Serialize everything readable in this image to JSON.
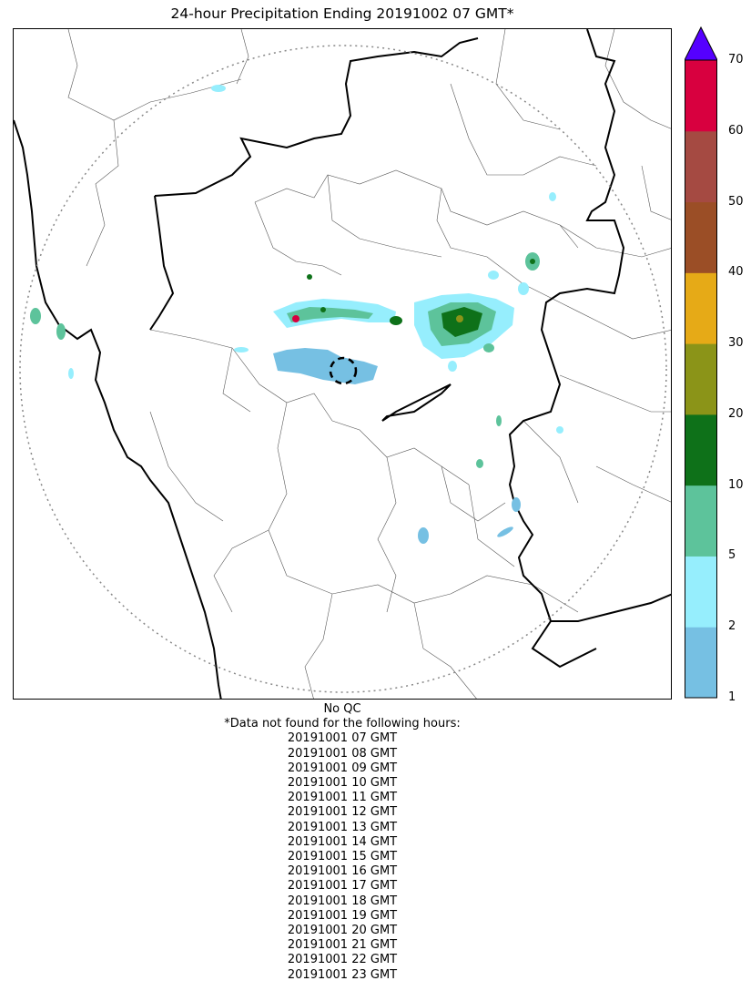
{
  "title": "24-hour Precipitation Ending 20191002 07 GMT*",
  "map": {
    "qc_status": "No QC",
    "missing_note": "*Data not found for the following hours:",
    "missing_hours": [
      "20191001 07 GMT",
      "20191001 08 GMT",
      "20191001 09 GMT",
      "20191001 10 GMT",
      "20191001 11 GMT",
      "20191001 12 GMT",
      "20191001 13 GMT",
      "20191001 14 GMT",
      "20191001 15 GMT",
      "20191001 16 GMT",
      "20191001 17 GMT",
      "20191001 18 GMT",
      "20191001 19 GMT",
      "20191001 20 GMT",
      "20191001 21 GMT",
      "20191001 22 GMT",
      "20191001 23 GMT"
    ]
  },
  "colorbar": {
    "ticks": [
      "1",
      "2",
      "5",
      "10",
      "20",
      "30",
      "40",
      "50",
      "60",
      "70"
    ],
    "bins": [
      {
        "from": 1,
        "to": 2,
        "color": "#76c0e3"
      },
      {
        "from": 2,
        "to": 5,
        "color": "#96eefd"
      },
      {
        "from": 5,
        "to": 10,
        "color": "#5dc39b"
      },
      {
        "from": 10,
        "to": 20,
        "color": "#0e7119"
      },
      {
        "from": 20,
        "to": 30,
        "color": "#8b9418"
      },
      {
        "from": 30,
        "to": 40,
        "color": "#e6aa17"
      },
      {
        "from": 40,
        "to": 50,
        "color": "#9b4e26"
      },
      {
        "from": 50,
        "to": 60,
        "color": "#a54a42"
      },
      {
        "from": 60,
        "to": 70,
        "color": "#d8003f"
      }
    ],
    "overflow_color": "#5500ff"
  }
}
